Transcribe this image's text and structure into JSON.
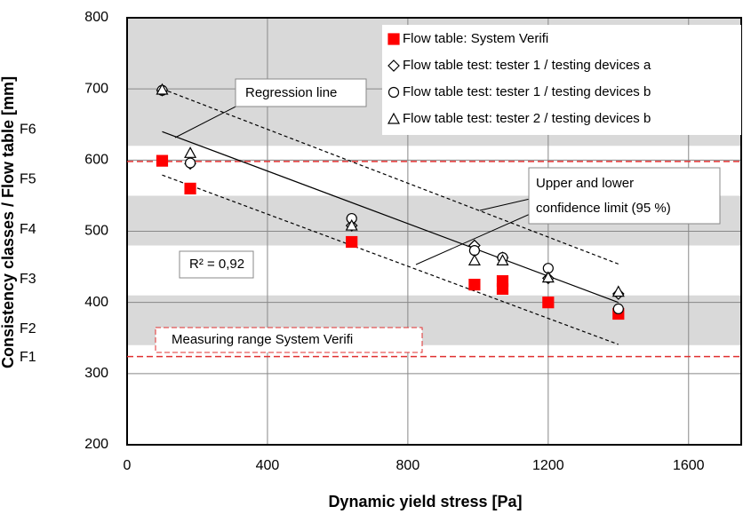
{
  "chart_data": {
    "type": "scatter",
    "x_label": "Dynamic yield stress [Pa]",
    "y_label": "Consistency classes / Flow table [mm]",
    "xlim": [
      0,
      1750
    ],
    "xticks": [
      0,
      400,
      800,
      1200,
      1600
    ],
    "ylim": [
      200,
      800
    ],
    "yticks": [
      200,
      300,
      400,
      500,
      600,
      700,
      800
    ],
    "grid": true,
    "legend": "upper right",
    "bands": [
      {
        "label": "F1",
        "range": [
          200,
          340
        ],
        "shaded": false
      },
      {
        "label": "F2",
        "range": [
          340,
          410
        ],
        "shaded": true
      },
      {
        "label": "F3",
        "range": [
          410,
          480
        ],
        "shaded": false
      },
      {
        "label": "F4",
        "range": [
          480,
          550
        ],
        "shaded": true
      },
      {
        "label": "F5",
        "range": [
          550,
          620
        ],
        "shaded": false
      },
      {
        "label": "F6",
        "range": [
          620,
          800
        ],
        "shaded": true
      }
    ],
    "ref_lines": [
      598,
      324
    ],
    "ref_color": "#e03030",
    "fit_lines": [
      {
        "x": [
          100,
          1400
        ],
        "y": [
          640,
          400
        ],
        "dashed": false
      },
      {
        "x": [
          100,
          1400
        ],
        "y": [
          700,
          454
        ],
        "dashed": true
      },
      {
        "x": [
          100,
          1400
        ],
        "y": [
          579,
          341
        ],
        "dashed": true
      }
    ],
    "series": [
      {
        "name": "Flow table: System Verifi",
        "color": "#ff0000",
        "marker": "square",
        "x": [
          100,
          180,
          640,
          990,
          1070,
          1070,
          1200,
          1400
        ],
        "values": [
          599,
          560,
          485,
          425,
          430,
          419,
          400,
          384
        ]
      },
      {
        "name": "Flow table test: tester 1 / testing devices a",
        "color": "#000000",
        "marker": "diamond",
        "x": [
          100,
          180,
          640,
          990,
          1070,
          1200,
          1400
        ],
        "values": [
          698,
          595,
          508,
          480,
          463,
          434,
          412
        ]
      },
      {
        "name": "Flow table test: tester 1 / testing devices b",
        "color": "#000000",
        "marker": "circle",
        "x": [
          100,
          180,
          640,
          990,
          1070,
          1200,
          1400
        ],
        "values": [
          698,
          596,
          518,
          473,
          463,
          448,
          391
        ]
      },
      {
        "name": "Flow table test: tester 2 / testing devices b",
        "color": "#000000",
        "marker": "triangle",
        "x": [
          100,
          180,
          640,
          990,
          1070,
          1200,
          1400
        ],
        "values": [
          699,
          610,
          508,
          459,
          459,
          435,
          415
        ]
      }
    ],
    "annotations": [
      "Regression line",
      "Upper and lower",
      "confidence limit (95 %)",
      "R² = 0,92",
      "Measuring range System Verifi"
    ]
  }
}
